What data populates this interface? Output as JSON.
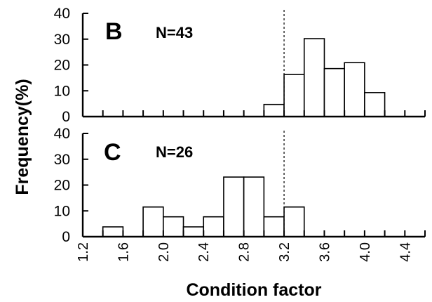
{
  "figure": {
    "ylabel": "Frequency(%)",
    "xlabel": "Condition factor"
  },
  "chart_data": [
    {
      "type": "bar",
      "panel": "B",
      "annotation": "N=43",
      "x_bin_starts": [
        3.0,
        3.2,
        3.4,
        3.6,
        3.8,
        4.0
      ],
      "bin_width": 0.2,
      "values": [
        4.7,
        16.3,
        30.2,
        18.6,
        20.9,
        9.3
      ],
      "xlim": [
        1.2,
        4.6
      ],
      "ylim": [
        0,
        40
      ],
      "yticks": [
        "0",
        "10",
        "20",
        "30",
        "40"
      ],
      "reference_line_x": 3.2
    },
    {
      "type": "bar",
      "panel": "C",
      "annotation": "N=26",
      "x_bin_starts": [
        1.4,
        1.8,
        2.0,
        2.2,
        2.4,
        2.6,
        2.8,
        3.0,
        3.2
      ],
      "bin_width": 0.2,
      "values": [
        3.8,
        11.5,
        7.7,
        3.8,
        7.7,
        23.1,
        23.1,
        7.7,
        11.5
      ],
      "xlim": [
        1.2,
        4.6
      ],
      "ylim": [
        0,
        40
      ],
      "yticks": [
        "0",
        "10",
        "20",
        "30",
        "40"
      ],
      "xticks": [
        "1.2",
        "1.6",
        "2.0",
        "2.4",
        "2.8",
        "3.2",
        "3.6",
        "4.0",
        "4.4"
      ],
      "reference_line_x": 3.2
    }
  ]
}
